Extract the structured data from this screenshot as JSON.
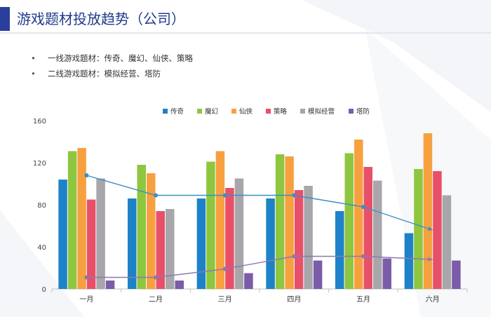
{
  "slide": {
    "title": "游戏题材投放趋势（公司）",
    "bullets": [
      "一线游戏题材：传奇、魔幻、仙侠、策略",
      "二线游戏题材：模拟经营、塔防"
    ]
  },
  "chart_data": {
    "type": "bar",
    "categories": [
      "一月",
      "二月",
      "三月",
      "四月",
      "五月",
      "六月"
    ],
    "series": [
      {
        "name": "传奇",
        "color": "#1e82c8",
        "values": [
          104,
          86,
          86,
          86,
          74,
          53
        ]
      },
      {
        "name": "魔幻",
        "color": "#8ec63f",
        "values": [
          131,
          118,
          121,
          128,
          129,
          114
        ]
      },
      {
        "name": "仙侠",
        "color": "#f7a03f",
        "values": [
          134,
          110,
          131,
          126,
          142,
          148
        ]
      },
      {
        "name": "策略",
        "color": "#e8506a",
        "values": [
          85,
          74,
          96,
          94,
          116,
          112
        ]
      },
      {
        "name": "模拟经营",
        "color": "#a7a6ab",
        "values": [
          105,
          76,
          105,
          98,
          103,
          89
        ]
      },
      {
        "name": "塔防",
        "color": "#7b5ca8",
        "values": [
          8,
          8,
          15,
          27,
          29,
          27
        ]
      }
    ],
    "trend_lines": [
      {
        "color": "#3a8fc4",
        "values": [
          108,
          89,
          89,
          89,
          78,
          56
        ]
      },
      {
        "color": "#8a79b3",
        "values": [
          11,
          11,
          19,
          31,
          31,
          28
        ]
      }
    ],
    "yticks": [
      0,
      40,
      80,
      120,
      160
    ],
    "ylim": [
      0,
      160
    ],
    "legend": "top",
    "grid": false
  }
}
